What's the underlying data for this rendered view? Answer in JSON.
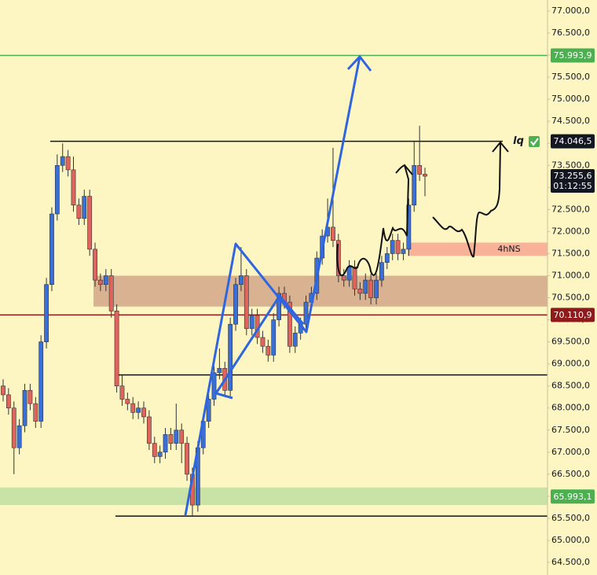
{
  "chart_data": {
    "type": "candlestick",
    "up_color": "#3a6fd8",
    "down_color": "#e0645e",
    "open": [
      68500,
      68300,
      68000,
      67100,
      67600,
      68400,
      68100,
      67700,
      69500,
      70800,
      72400,
      73500,
      73700,
      73400,
      72600,
      72300,
      72800,
      71600,
      70900,
      70800,
      71000,
      70200,
      68500,
      68200,
      68100,
      67900,
      68000,
      67800,
      67200,
      66900,
      67000,
      67400,
      67200,
      67500,
      67200,
      66500,
      65800,
      67100,
      67700,
      68200,
      68800,
      68900,
      68400,
      69900,
      70800,
      71000,
      69800,
      70100,
      69600,
      69400,
      69200,
      70000,
      70600,
      70400,
      69400,
      69700,
      69900,
      70400,
      70600,
      71400,
      71900,
      72100,
      71800,
      71000,
      70900,
      71200,
      70700,
      70600,
      70900,
      70500,
      70900,
      71300,
      71500,
      71800,
      71500,
      71600,
      72600,
      73500,
      73300
    ],
    "high": [
      68650,
      68450,
      68150,
      67750,
      68550,
      68550,
      68250,
      69650,
      70950,
      72550,
      73750,
      74000,
      73850,
      73700,
      72750,
      72950,
      72950,
      71750,
      71050,
      71150,
      71150,
      70350,
      68750,
      68350,
      68250,
      68150,
      68150,
      67950,
      67350,
      67150,
      67550,
      67550,
      68100,
      67650,
      67350,
      66650,
      67250,
      67850,
      68350,
      68950,
      69350,
      69050,
      70050,
      70950,
      71650,
      71150,
      70250,
      70250,
      69750,
      69550,
      70150,
      70750,
      70750,
      70550,
      69850,
      70050,
      70550,
      70750,
      71550,
      72050,
      72750,
      73900,
      71950,
      71150,
      71350,
      71350,
      70850,
      71050,
      71050,
      71050,
      71450,
      71650,
      71950,
      71950,
      71750,
      72750,
      74050,
      74400,
      73450
    ],
    "low": [
      68150,
      67850,
      66500,
      66950,
      67450,
      67950,
      67550,
      67550,
      69350,
      70650,
      72250,
      73350,
      73250,
      72450,
      72150,
      72150,
      71450,
      70750,
      70650,
      70650,
      70050,
      68350,
      68050,
      67950,
      67750,
      67750,
      67650,
      67050,
      66750,
      66750,
      66850,
      67050,
      67050,
      66750,
      66350,
      65550,
      65650,
      66950,
      67550,
      68050,
      68650,
      68250,
      68250,
      69750,
      70650,
      69650,
      69650,
      69450,
      69250,
      69050,
      69050,
      69850,
      70250,
      69250,
      69250,
      69550,
      69750,
      70250,
      70450,
      71250,
      71750,
      71650,
      70850,
      70750,
      70750,
      70550,
      70450,
      70450,
      70350,
      70350,
      70750,
      71150,
      71350,
      71350,
      71350,
      71450,
      72450,
      73150,
      72800
    ],
    "close": [
      68300,
      68000,
      67100,
      67600,
      68400,
      68100,
      67700,
      69500,
      70800,
      72400,
      73500,
      73700,
      73400,
      72600,
      72300,
      72800,
      71600,
      70900,
      70800,
      71000,
      70200,
      68500,
      68200,
      68100,
      67900,
      68000,
      67800,
      67200,
      66900,
      67000,
      67400,
      67200,
      67500,
      67200,
      66500,
      65800,
      67100,
      67700,
      68200,
      68800,
      68900,
      68400,
      69900,
      70800,
      71000,
      69800,
      70100,
      69600,
      69400,
      69200,
      70000,
      70600,
      70400,
      69400,
      69700,
      69900,
      70400,
      70600,
      71400,
      71900,
      72100,
      71800,
      71000,
      70900,
      71200,
      70700,
      70600,
      70900,
      70500,
      70900,
      71300,
      71500,
      71800,
      71500,
      71600,
      72600,
      73500,
      73300,
      73255.6
    ],
    "ylim": [
      64215,
      77250
    ],
    "yticks": [
      {
        "value": 64500,
        "label": "64.500,0"
      },
      {
        "value": 65000,
        "label": "65.000,0"
      },
      {
        "value": 65500,
        "label": "65.500,0"
      },
      {
        "value": 66000,
        "label": "66.000,0"
      },
      {
        "value": 66500,
        "label": "66.500,0"
      },
      {
        "value": 67000,
        "label": "67.000,0"
      },
      {
        "value": 67500,
        "label": "67.500,0"
      },
      {
        "value": 68000,
        "label": "68.000,0"
      },
      {
        "value": 68500,
        "label": "68.500,0"
      },
      {
        "value": 69000,
        "label": "69.000,0"
      },
      {
        "value": 69500,
        "label": "69.500,0"
      },
      {
        "value": 70000,
        "label": "70.000,0"
      },
      {
        "value": 70500,
        "label": "70.500,0"
      },
      {
        "value": 71000,
        "label": "71.000,0"
      },
      {
        "value": 71500,
        "label": "71.500,0"
      },
      {
        "value": 72000,
        "label": "72.000,0"
      },
      {
        "value": 72500,
        "label": "72.500,0"
      },
      {
        "value": 73000,
        "label": "73.000,0"
      },
      {
        "value": 73500,
        "label": "73.500,0"
      },
      {
        "value": 74000,
        "label": "74.000,0"
      },
      {
        "value": 74500,
        "label": "74.500,0"
      },
      {
        "value": 75000,
        "label": "75.000,0"
      },
      {
        "value": 75500,
        "label": "75.500,0"
      },
      {
        "value": 76000,
        "label": "76.000,0"
      },
      {
        "value": 76500,
        "label": "76.500,0"
      },
      {
        "value": 77000,
        "label": "77.000,0"
      }
    ],
    "zones": [
      {
        "from": 70300,
        "to": 71000,
        "color": "#d4ab8c"
      },
      {
        "from": 71450,
        "to": 71750,
        "color": "#f6ab93"
      },
      {
        "from": 65800,
        "to": 66200,
        "color": "#c3e0a2"
      }
    ],
    "levels": [
      {
        "value": 75993.9,
        "label": "75.993,9",
        "color": "#4caf50"
      },
      {
        "value": 74046.5,
        "label": "74.046,5",
        "color": "#131722"
      },
      {
        "value": 70110.9,
        "label": "70.110,9",
        "color": "#8e1b1b"
      },
      {
        "value": 65993.1,
        "label": "65.993,1",
        "color": "#4caf50"
      }
    ],
    "lines": [
      68750,
      65550
    ],
    "last_price": {
      "value": 73255.6,
      "label": "73.255,6",
      "countdown": "01:12:55",
      "color": "#131722"
    },
    "annotations": [
      "4hNS",
      "lq"
    ]
  }
}
